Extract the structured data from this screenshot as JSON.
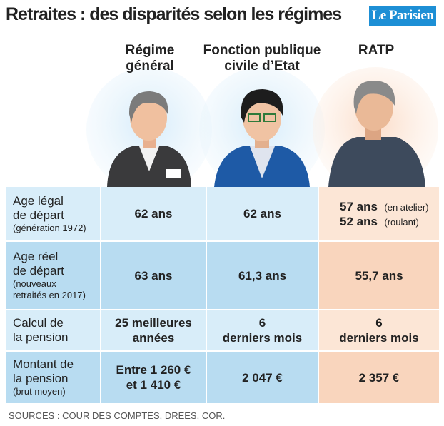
{
  "header": {
    "title": "Retraites : des disparités selon les régimes",
    "brand": "Le Parisien"
  },
  "columns": [
    [
      "Régime",
      "général"
    ],
    [
      "Fonction publique",
      "civile d’Etat"
    ],
    [
      "RATP"
    ]
  ],
  "rows": [
    {
      "label": [
        "Age légal",
        "de départ"
      ],
      "label_note": [
        "(génération 1972)"
      ],
      "cells": [
        [
          "62 ans"
        ],
        [
          "62 ans"
        ],
        [
          {
            "text": "57 ans",
            "note": "(en atelier)"
          },
          {
            "text": "52 ans",
            "note": "(roulant)"
          }
        ]
      ]
    },
    {
      "label": [
        "Age réel",
        "de départ"
      ],
      "label_note": [
        "(nouveaux",
        "retraités en 2017)"
      ],
      "cells": [
        [
          "63 ans"
        ],
        [
          "61,3 ans"
        ],
        [
          "55,7 ans"
        ]
      ]
    },
    {
      "label": [
        "Calcul de",
        "la pension"
      ],
      "label_note": [],
      "cells": [
        [
          "25 meilleures",
          "années"
        ],
        [
          "6",
          "derniers mois"
        ],
        [
          "6",
          "derniers mois"
        ]
      ]
    },
    {
      "label": [
        "Montant de",
        "la pension"
      ],
      "label_note": [
        "(brut moyen)"
      ],
      "cells": [
        [
          "Entre 1 260 €",
          "et 1 410 €"
        ],
        [
          "2 047 €"
        ],
        [
          "2 357 €"
        ]
      ]
    }
  ],
  "source": "SOURCES : COUR DES COMPTES, DREES, COR."
}
